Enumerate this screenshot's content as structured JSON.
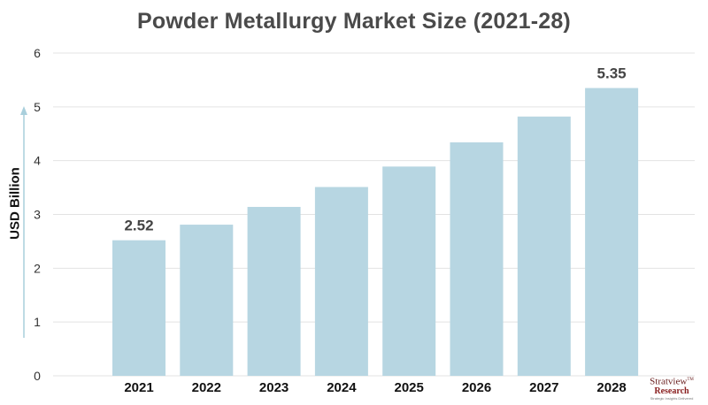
{
  "chart_data": {
    "type": "bar",
    "title": "Powder Metallurgy Market Size (2021-28)",
    "xlabel": "",
    "ylabel": "USD Billion",
    "categories": [
      "2021",
      "2022",
      "2023",
      "2024",
      "2025",
      "2026",
      "2027",
      "2028"
    ],
    "values": [
      2.52,
      2.81,
      3.14,
      3.51,
      3.89,
      4.34,
      4.82,
      5.35
    ],
    "data_labels": [
      "2.52",
      "",
      "",
      "",
      "",
      "",
      "",
      "5.35"
    ],
    "ylim": [
      0,
      6
    ],
    "yticks": [
      "0",
      "1",
      "2",
      "3",
      "4",
      "5",
      "6"
    ],
    "grid": true,
    "legend": "none",
    "bar_color": "#b7d6e2",
    "grid_color": "#e3e3e3",
    "arrow_color": "#a9cfdc"
  },
  "logo": {
    "top_text": "Stratview",
    "tm": "TM",
    "bottom_text": "Research",
    "tagline": "Strategic Insights Delivered"
  }
}
